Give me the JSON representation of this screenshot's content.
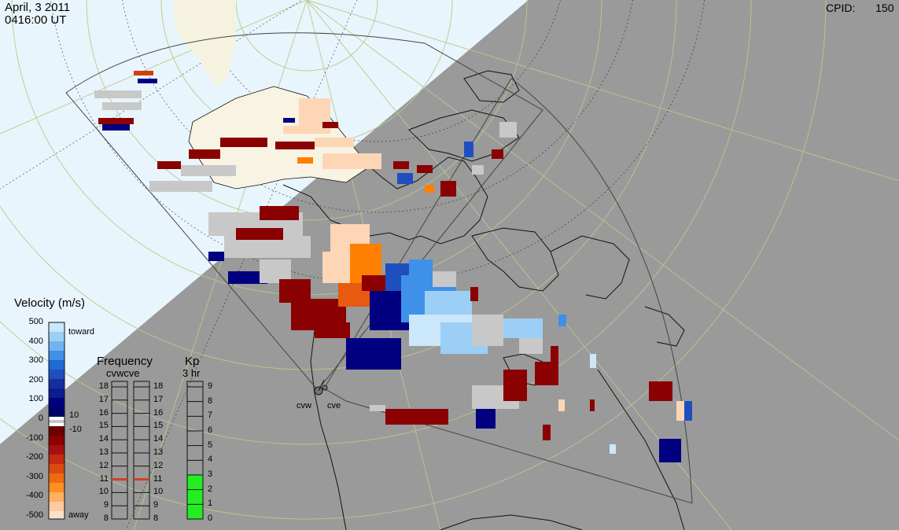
{
  "header": {
    "date": "April, 3 2011",
    "time": "0416:00 UT",
    "cpid_label": "CPID:",
    "cpid_value": "150"
  },
  "radars": [
    "cvw",
    "cve"
  ],
  "velocity_legend": {
    "title": "Velocity (m/s)",
    "ticks": [
      "500",
      "400",
      "300",
      "200",
      "100",
      "0",
      "-100",
      "-200",
      "-300",
      "-400",
      "-500"
    ],
    "toward_label": "toward",
    "away_label": "away",
    "pos_threshold": "10",
    "neg_threshold": "-10"
  },
  "frequency_panel": {
    "title": "Frequency",
    "subtitle": "cvwcve",
    "ticks": [
      "18",
      "17",
      "16",
      "15",
      "14",
      "13",
      "12",
      "11",
      "10",
      "9",
      "8"
    ],
    "cvw_mhz": 11,
    "cve_mhz": 11
  },
  "kp_panel": {
    "title": "Kp",
    "subtitle": "3 hr",
    "ticks": [
      "9",
      "8",
      "7",
      "6",
      "5",
      "4",
      "3",
      "2",
      "1",
      "0"
    ],
    "value": 3
  },
  "colors": {
    "daylight": "#e9f5fc",
    "night": "#9a9a9a",
    "kp_bar": "#22ee22",
    "freq_marker": "#d04020"
  }
}
